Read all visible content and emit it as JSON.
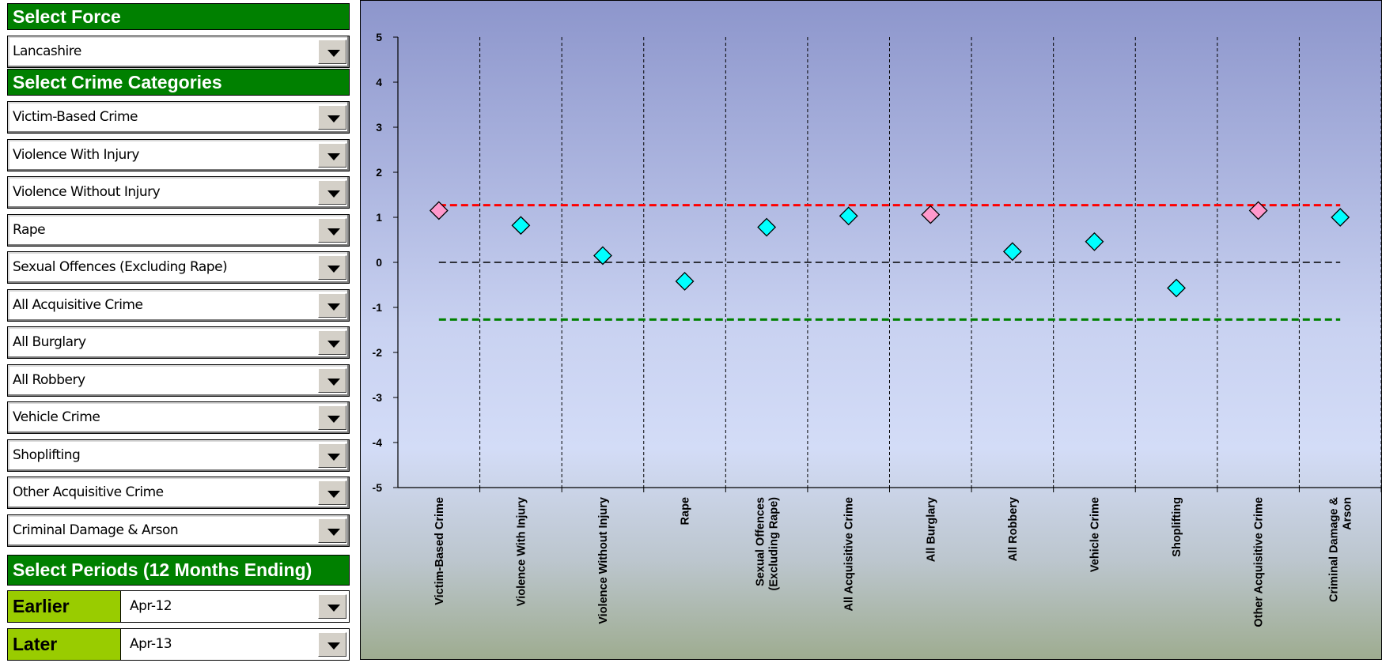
{
  "controls": {
    "force_header": "Select Force",
    "force_value": "Lancashire",
    "categories_header": "Select Crime Categories",
    "categories": [
      "Victim-Based Crime",
      "Violence With Injury",
      "Violence Without Injury",
      "Rape",
      "Sexual Offences (Excluding Rape)",
      "All Acquisitive Crime",
      "All Burglary",
      "All Robbery",
      "Vehicle Crime",
      "Shoplifting",
      "Other Acquisitive Crime",
      "Criminal Damage & Arson"
    ],
    "periods_header": "Select Periods (12 Months Ending)",
    "earlier_label": "Earlier",
    "earlier_value": "Apr-12",
    "later_label": "Later",
    "later_value": "Apr-13"
  },
  "colors": {
    "header_green": "#008000",
    "period_green": "#99cc00",
    "upper_line": "#ff0000",
    "lower_line": "#008000",
    "zero_line": "#000000",
    "marker_normal": "#00ffff",
    "marker_flagged": "#ff99cc"
  },
  "chart_data": {
    "type": "scatter",
    "categories": [
      "Victim-Based Crime",
      "Violence With Injury",
      "Violence Without Injury",
      "Rape",
      "Sexual Offences (Excluding Rape)",
      "All Acquisitive Crime",
      "All Burglary",
      "All Robbery",
      "Vehicle Crime",
      "Shoplifting",
      "Other Acquisitive Crime",
      "Criminal Damage & Arson"
    ],
    "category_labels": [
      [
        "Victim-Based Crime"
      ],
      [
        "Violence With Injury"
      ],
      [
        "Violence Without Injury"
      ],
      [
        "Rape"
      ],
      [
        "Sexual Offences",
        "(Excluding Rape)"
      ],
      [
        "All Acquisitive Crime"
      ],
      [
        "All Burglary"
      ],
      [
        "All Robbery"
      ],
      [
        "Vehicle Crime"
      ],
      [
        "Shoplifting"
      ],
      [
        "Other Acquisitive Crime"
      ],
      [
        "Criminal Damage &",
        "Arson"
      ]
    ],
    "values": [
      1.15,
      0.82,
      0.15,
      -0.42,
      0.78,
      1.03,
      1.06,
      0.24,
      0.46,
      -0.57,
      1.15,
      1.0
    ],
    "flagged": [
      true,
      false,
      false,
      false,
      false,
      false,
      true,
      false,
      false,
      false,
      true,
      false
    ],
    "reference_lines": {
      "upper": 1.27,
      "zero": 0,
      "lower": -1.27
    },
    "ylim": [
      -5,
      5
    ],
    "yticks": [
      "5",
      "4",
      "3",
      "2",
      "1",
      "0",
      "-1",
      "-2",
      "-3",
      "-4",
      "-5"
    ],
    "xlabel": "",
    "ylabel": "",
    "title": "",
    "grid": "vertical dashed category dividers"
  }
}
